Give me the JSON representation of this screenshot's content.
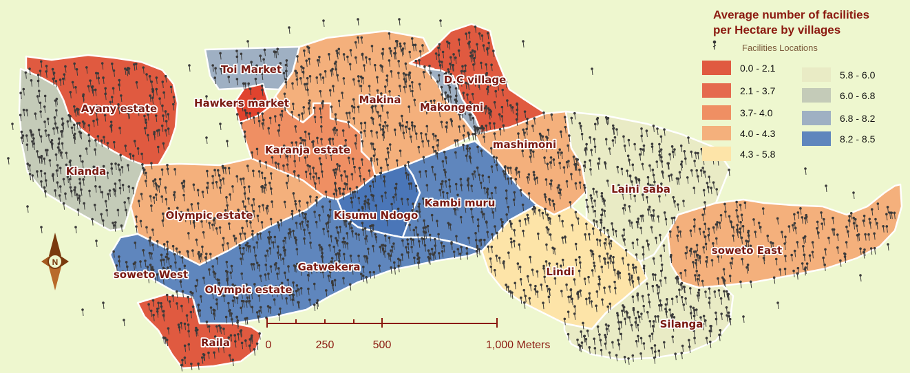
{
  "legend": {
    "title_line1": "Average number of facilities",
    "title_line2": "per Hectare by villages",
    "facilities_label": "Facilities Locations",
    "classes": [
      {
        "label": "0.0 - 2.1",
        "color": "#e05a40"
      },
      {
        "label": "2.1 - 3.7",
        "color": "#e56a4e"
      },
      {
        "label": "3.7- 4.0",
        "color": "#ef8f63"
      },
      {
        "label": "4.0 - 4.3",
        "color": "#f4b07c"
      },
      {
        "label": "4.3 - 5.8",
        "color": "#fde4a8"
      },
      {
        "label": "5.8 - 6.0",
        "color": "#e9ebc5"
      },
      {
        "label": "6.0 - 6.8",
        "color": "#c4cbb8"
      },
      {
        "label": "6.8 - 8.2",
        "color": "#9fb0c3"
      },
      {
        "label": "8.2 - 8.5",
        "color": "#5f86bd"
      }
    ]
  },
  "villages": {
    "ayany": "Ayany estate",
    "kianda": "Kianda",
    "toi": "Toi Market",
    "hawkers": "Hawkers market",
    "karanja": "Karanja estate",
    "makina": "Makina",
    "dc": "D.C village",
    "makongeni": "Makongeni",
    "mashimoni": "mashimoni",
    "olympic_estate_north": "Olympic estate",
    "kisumu": "Kisumu Ndogo",
    "kambi": "Kambi muru",
    "laini": "Laini saba",
    "soweto_east": "soweto East",
    "gatwekera": "Gatwekera",
    "soweto_west": "soweto West",
    "olympic_estate_south": "Olympic estate",
    "lindi": "Lindi",
    "silanga": "Silanga",
    "raila": "Raila"
  },
  "scale_bar": {
    "labels": [
      "0",
      "250",
      "500",
      "1,000 Meters"
    ]
  },
  "north_arrow": {
    "letter": "N"
  },
  "colors": {
    "background": "#eef7cf",
    "point": "#3a3a3a",
    "border": "#ffffff",
    "label_text": "#7a1a12"
  }
}
